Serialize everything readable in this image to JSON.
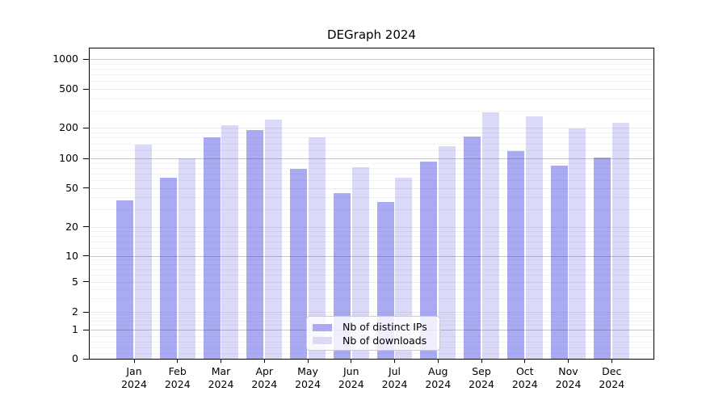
{
  "chart_data": {
    "type": "bar",
    "title": "DEGraph 2024",
    "categories": [
      "Jan 2024",
      "Feb 2024",
      "Mar 2024",
      "Apr 2024",
      "May 2024",
      "Jun 2024",
      "Jul 2024",
      "Aug 2024",
      "Sep 2024",
      "Oct 2024",
      "Nov 2024",
      "Dec 2024"
    ],
    "series": [
      {
        "name": "Nb of distinct IPs",
        "color": "#aaaaf2",
        "values": [
          37,
          63,
          161,
          191,
          78,
          44,
          36,
          92,
          163,
          117,
          84,
          102
        ]
      },
      {
        "name": "Nb of downloads",
        "color": "#dadaf8",
        "values": [
          137,
          100,
          214,
          242,
          160,
          82,
          63,
          132,
          287,
          262,
          197,
          225
        ]
      }
    ],
    "y_axis": {
      "scale": "symlog",
      "ticks": [
        0,
        1,
        2,
        5,
        10,
        20,
        50,
        100,
        200,
        500,
        1000
      ],
      "range": [
        0,
        1300
      ]
    },
    "x_axis": {
      "tick_label_line2": "2024"
    },
    "legend": {
      "position": "lower-center-inside",
      "entries": [
        "Nb of distinct IPs",
        "Nb of downloads"
      ]
    },
    "grid": true,
    "grid_major_color": "#c4c4c8",
    "grid_minor_color": "#ededf0"
  }
}
